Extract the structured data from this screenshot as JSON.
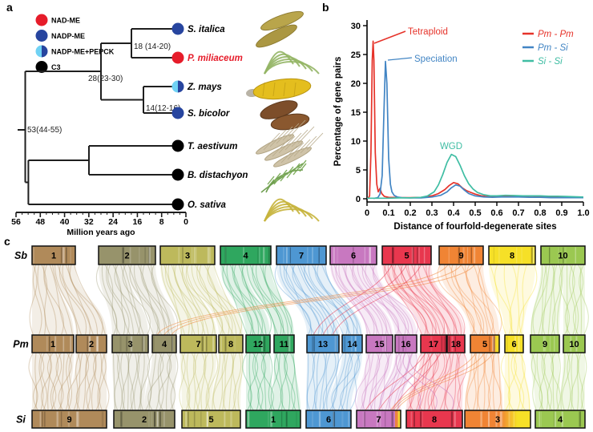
{
  "panels": {
    "a": {
      "label": "a",
      "legend": [
        {
          "name": "NAD-ME",
          "style": "solid",
          "color": "#e61c2a"
        },
        {
          "name": "NADP-ME",
          "style": "solid",
          "color": "#27459f"
        },
        {
          "name": "NADP-ME+PEPCK",
          "style": "split",
          "color_left": "#70d2f4",
          "color_right": "#27459f"
        },
        {
          "name": "C3",
          "style": "solid",
          "color": "#000000"
        }
      ],
      "species": [
        {
          "name": "S. italica",
          "pathway": "NADP-ME",
          "label_color": "#000000"
        },
        {
          "name": "P. miliaceum",
          "pathway": "NAD-ME",
          "label_color": "#e61c2a"
        },
        {
          "name": "Z. mays",
          "pathway": "NADP-ME+PEPCK",
          "label_color": "#000000"
        },
        {
          "name": "S. bicolor",
          "pathway": "NADP-ME",
          "label_color": "#000000"
        },
        {
          "name": "T. aestivum",
          "pathway": "C3",
          "label_color": "#000000"
        },
        {
          "name": "B. distachyon",
          "pathway": "C3",
          "label_color": "#000000"
        },
        {
          "name": "O. sativa",
          "pathway": "C3",
          "label_color": "#000000"
        }
      ],
      "divergence_nodes": [
        {
          "id": "n18",
          "label": "18 (14-20)"
        },
        {
          "id": "n28",
          "label": "28(23-30)"
        },
        {
          "id": "n14",
          "label": "14(12-16)"
        },
        {
          "id": "root",
          "label": "53(44-55)"
        }
      ],
      "axis": {
        "label": "Million years ago",
        "ticks": [
          "56",
          "48",
          "40",
          "32",
          "24",
          "16",
          "8",
          "0"
        ]
      }
    },
    "b": {
      "label": "b"
    },
    "c": {
      "label": "c",
      "row_labels": [
        "Sb",
        "Pm",
        "Si"
      ],
      "rows": {
        "sb": [
          "1",
          "2",
          "3",
          "4",
          "7",
          "6",
          "5",
          "9",
          "8",
          "10"
        ],
        "pm": [
          "1",
          "2",
          "3",
          "4",
          "7",
          "8",
          "12",
          "11",
          "13",
          "14",
          "15",
          "16",
          "17",
          "18",
          "5",
          "6",
          "9",
          "10"
        ],
        "si": [
          "9",
          "2",
          "5",
          "1",
          "6",
          "7",
          "8",
          "3",
          "4"
        ]
      },
      "families": [
        {
          "color": "#b08a5a",
          "sb": "1",
          "pm": [
            "1",
            "2"
          ],
          "si": "9"
        },
        {
          "color": "#97936b",
          "sb": "2",
          "pm": [
            "3",
            "4"
          ],
          "si": "2"
        },
        {
          "color": "#bdb95c",
          "sb": "3",
          "pm": [
            "7",
            "8"
          ],
          "si": "5"
        },
        {
          "color": "#2fa75f",
          "sb": "4",
          "pm": [
            "12",
            "11"
          ],
          "si": "1"
        },
        {
          "color": "#4e97d2",
          "sb": "7",
          "pm": [
            "13",
            "14"
          ],
          "si": "6"
        },
        {
          "color": "#c878c0",
          "sb": "6",
          "pm": [
            "15",
            "16"
          ],
          "si": "7"
        },
        {
          "color": "#e8374e",
          "sb": "5",
          "pm": [
            "17",
            "18"
          ],
          "si": "8"
        },
        {
          "color": "#f08434",
          "sb": "9",
          "pm": [
            "5"
          ],
          "si": "3"
        },
        {
          "color": "#f6e027",
          "sb": "8",
          "pm": [
            "6"
          ],
          "si": "3"
        },
        {
          "color": "#9bc851",
          "sb": "10",
          "pm": [
            "9",
            "10"
          ],
          "si": "4"
        }
      ]
    }
  },
  "chart_data": {
    "type": "line",
    "xlabel": "Distance of fourfold-degenerate sites",
    "ylabel": "Percentage of gene pairs",
    "xlim": [
      0,
      1.0
    ],
    "ylim": [
      0,
      30
    ],
    "xticks": [
      "0",
      "0.1",
      "0.2",
      "0.3",
      "0.4",
      "0.5",
      "0.6",
      "0.7",
      "0.8",
      "0.9",
      "1.0"
    ],
    "yticks": [
      "0",
      "5",
      "10",
      "15",
      "20",
      "25",
      "30"
    ],
    "legend_position": "top-right",
    "annotations": [
      {
        "text": "Tetraploid",
        "color": "#e6332a",
        "x": 0.03,
        "y": 27.3
      },
      {
        "text": "Speciation",
        "color": "#4285c4",
        "x": 0.085,
        "y": 23.8
      },
      {
        "text": "WGD",
        "color": "#3fbda3",
        "x": 0.39,
        "y": 7.7
      }
    ],
    "series": [
      {
        "name": "Pm - Pm",
        "color": "#e6332a",
        "points": [
          [
            0.005,
            0.1
          ],
          [
            0.012,
            0.5
          ],
          [
            0.018,
            8
          ],
          [
            0.024,
            24
          ],
          [
            0.028,
            27.3
          ],
          [
            0.032,
            24
          ],
          [
            0.038,
            8
          ],
          [
            0.045,
            2.5
          ],
          [
            0.052,
            1.2
          ],
          [
            0.06,
            1.8
          ],
          [
            0.068,
            0.9
          ],
          [
            0.08,
            0.4
          ],
          [
            0.1,
            0.25
          ],
          [
            0.15,
            0.2
          ],
          [
            0.2,
            0.2
          ],
          [
            0.25,
            0.25
          ],
          [
            0.3,
            0.5
          ],
          [
            0.33,
            0.9
          ],
          [
            0.36,
            1.6
          ],
          [
            0.38,
            2.3
          ],
          [
            0.4,
            2.8
          ],
          [
            0.42,
            2.6
          ],
          [
            0.44,
            1.9
          ],
          [
            0.46,
            1.4
          ],
          [
            0.48,
            1.1
          ],
          [
            0.5,
            0.8
          ],
          [
            0.53,
            0.5
          ],
          [
            0.56,
            0.35
          ],
          [
            0.6,
            0.45
          ],
          [
            0.64,
            0.5
          ],
          [
            0.68,
            0.45
          ],
          [
            0.72,
            0.4
          ],
          [
            0.76,
            0.5
          ],
          [
            0.8,
            0.4
          ],
          [
            0.84,
            0.35
          ],
          [
            0.88,
            0.3
          ],
          [
            0.92,
            0.3
          ],
          [
            0.96,
            0.25
          ],
          [
            1.0,
            0.25
          ]
        ]
      },
      {
        "name": "Pm - Si",
        "color": "#4285c4",
        "points": [
          [
            0.03,
            0.05
          ],
          [
            0.05,
            0.2
          ],
          [
            0.06,
            0.8
          ],
          [
            0.07,
            4
          ],
          [
            0.078,
            15
          ],
          [
            0.085,
            23.8
          ],
          [
            0.092,
            20
          ],
          [
            0.1,
            7
          ],
          [
            0.108,
            2.5
          ],
          [
            0.115,
            1.2
          ],
          [
            0.125,
            0.6
          ],
          [
            0.14,
            0.3
          ],
          [
            0.16,
            0.2
          ],
          [
            0.2,
            0.15
          ],
          [
            0.25,
            0.15
          ],
          [
            0.3,
            0.3
          ],
          [
            0.34,
            0.6
          ],
          [
            0.37,
            1.2
          ],
          [
            0.39,
            1.9
          ],
          [
            0.41,
            2.4
          ],
          [
            0.43,
            2.2
          ],
          [
            0.45,
            1.5
          ],
          [
            0.47,
            0.9
          ],
          [
            0.5,
            0.5
          ],
          [
            0.54,
            0.3
          ],
          [
            0.58,
            0.25
          ],
          [
            0.62,
            0.3
          ],
          [
            0.66,
            0.3
          ],
          [
            0.7,
            0.3
          ],
          [
            0.75,
            0.25
          ],
          [
            0.8,
            0.25
          ],
          [
            0.85,
            0.2
          ],
          [
            0.9,
            0.2
          ],
          [
            0.95,
            0.2
          ],
          [
            1.0,
            0.2
          ]
        ]
      },
      {
        "name": "Si - Si",
        "color": "#3fbda3",
        "points": [
          [
            0.0,
            0.1
          ],
          [
            0.05,
            0.1
          ],
          [
            0.1,
            0.1
          ],
          [
            0.15,
            0.15
          ],
          [
            0.2,
            0.15
          ],
          [
            0.25,
            0.25
          ],
          [
            0.28,
            0.5
          ],
          [
            0.31,
            1.2
          ],
          [
            0.33,
            2.4
          ],
          [
            0.35,
            4.2
          ],
          [
            0.37,
            6.3
          ],
          [
            0.39,
            7.7
          ],
          [
            0.41,
            7.3
          ],
          [
            0.43,
            5.8
          ],
          [
            0.45,
            4.0
          ],
          [
            0.47,
            2.6
          ],
          [
            0.49,
            1.7
          ],
          [
            0.51,
            1.1
          ],
          [
            0.54,
            0.7
          ],
          [
            0.57,
            0.5
          ],
          [
            0.6,
            0.5
          ],
          [
            0.64,
            0.6
          ],
          [
            0.68,
            0.55
          ],
          [
            0.72,
            0.5
          ],
          [
            0.76,
            0.5
          ],
          [
            0.8,
            0.5
          ],
          [
            0.84,
            0.45
          ],
          [
            0.88,
            0.45
          ],
          [
            0.92,
            0.4
          ],
          [
            0.96,
            0.35
          ],
          [
            1.0,
            0.3
          ]
        ]
      }
    ]
  }
}
